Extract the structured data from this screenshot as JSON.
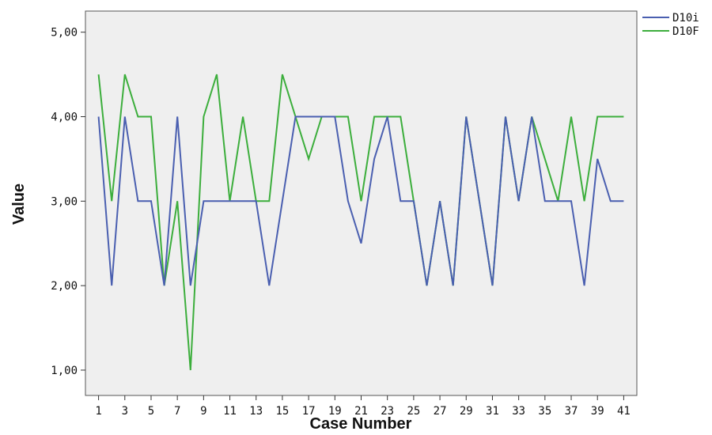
{
  "chart_data": {
    "type": "line",
    "xlabel": "Case Number",
    "ylabel": "Value",
    "xlim": [
      0,
      42
    ],
    "ylim": [
      0.7,
      5.25
    ],
    "x_ticks": [
      1,
      3,
      5,
      7,
      9,
      11,
      13,
      15,
      17,
      19,
      21,
      23,
      25,
      27,
      29,
      31,
      33,
      35,
      37,
      39,
      41
    ],
    "y_ticks": [
      1,
      2,
      3,
      4,
      5
    ],
    "y_tick_labels": [
      "1,00",
      "2,00",
      "3,00",
      "4,00",
      "5,00"
    ],
    "grid": false,
    "legend_position": "top-right",
    "x": [
      1,
      2,
      3,
      4,
      5,
      6,
      7,
      8,
      9,
      10,
      11,
      12,
      13,
      14,
      15,
      16,
      17,
      18,
      19,
      20,
      21,
      22,
      23,
      24,
      25,
      26,
      27,
      28,
      29,
      30,
      31,
      32,
      33,
      34,
      35,
      36,
      37,
      38,
      39,
      40,
      41
    ],
    "series": [
      {
        "name": "D10i",
        "color": "#4a5fb0",
        "values": [
          4,
          2,
          4,
          3,
          3,
          2,
          4,
          2,
          3,
          3,
          3,
          3,
          3,
          2,
          3,
          4,
          4,
          4,
          4,
          3,
          2.5,
          3.5,
          4,
          3,
          3,
          2,
          3,
          2,
          4,
          3,
          2,
          4,
          3,
          4,
          3,
          3,
          3,
          2,
          3.5,
          3,
          3
        ]
      },
      {
        "name": "D10F",
        "color": "#3cae3c",
        "values": [
          4.5,
          3,
          4.5,
          4,
          4,
          2,
          3,
          1,
          4,
          4.5,
          3,
          4,
          3,
          3,
          4.5,
          4,
          3.5,
          4,
          4,
          4,
          3,
          4,
          4,
          4,
          3,
          2,
          3,
          2,
          4,
          3,
          2,
          4,
          3,
          4,
          3.5,
          3,
          4,
          3,
          4,
          4,
          4
        ]
      }
    ]
  }
}
